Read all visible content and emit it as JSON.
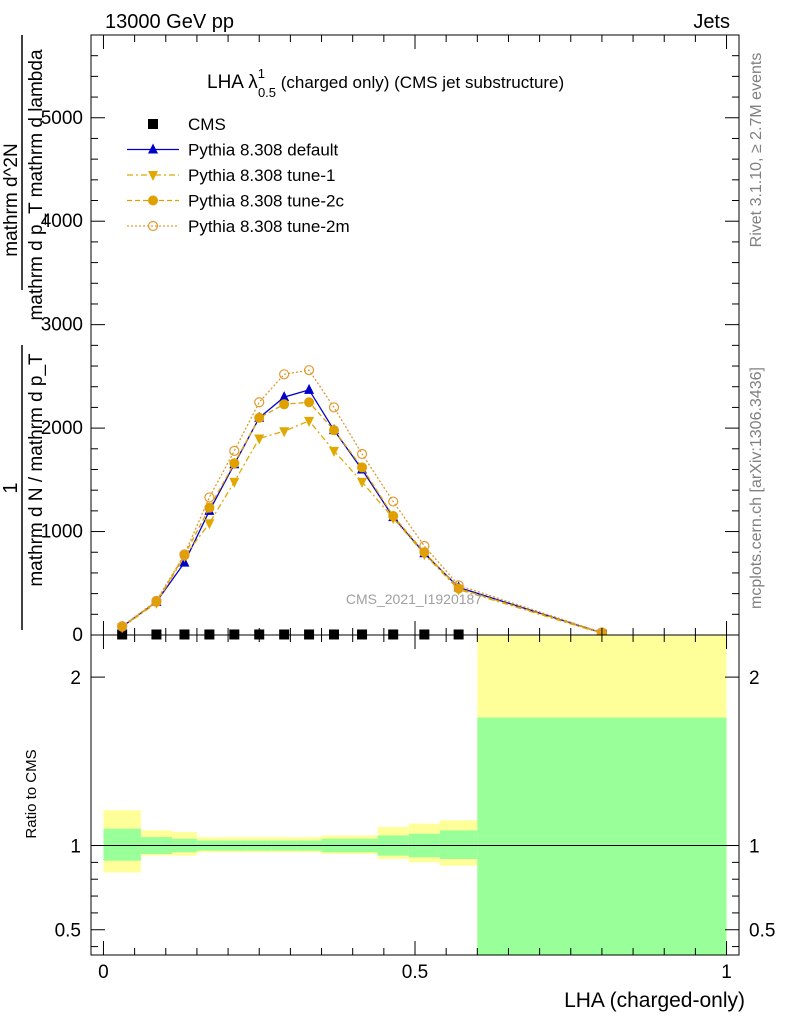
{
  "header": {
    "left": "13000 GeV pp",
    "right": "Jets"
  },
  "side_labels": {
    "rivet": "Rivet 3.1.10, ≥ 2.7M events",
    "mcplots": "mcplots.cern.ch [arXiv:1306.3436]"
  },
  "watermark": "CMS_2021_I1920187",
  "chart_data": [
    {
      "type": "line",
      "title": {
        "prefix": "LHA λ",
        "sup": "1",
        "sub": "0.5",
        "suffix": " (charged only) (CMS jet substructure)"
      },
      "ylabel": {
        "numerator_top": "1",
        "denominator_top": "mathrm d N / mathrm d p_T",
        "numerator_main": "mathrm d^2N",
        "denominator_main": "mathrm d p_T mathrm d lambda"
      },
      "xlim": [
        -0.02,
        1.02
      ],
      "ylim": [
        0,
        5800
      ],
      "yticks": [
        0,
        1000,
        2000,
        3000,
        4000,
        5000
      ],
      "yticklabels": [
        "0",
        "1000",
        "2000",
        "3000",
        "4000",
        "5000"
      ],
      "legend": {
        "placement": "top-left",
        "entries": [
          "CMS",
          "Pythia 8.308 default",
          "Pythia 8.308 tune-1",
          "Pythia 8.308 tune-2c",
          "Pythia 8.308 tune-2m"
        ]
      },
      "x": [
        0.03,
        0.085,
        0.13,
        0.17,
        0.21,
        0.25,
        0.29,
        0.33,
        0.37,
        0.415,
        0.465,
        0.515,
        0.57,
        0.8
      ],
      "series": [
        {
          "name": "CMS",
          "color": "#000000",
          "marker": "square",
          "values": [
            5,
            5,
            5,
            5,
            5,
            5,
            5,
            5,
            5,
            5,
            5,
            5,
            5,
            5
          ]
        },
        {
          "name": "Pythia 8.308 default",
          "color": "#0000cc",
          "marker": "triangle-up",
          "dash": "",
          "values": [
            80,
            320,
            700,
            1200,
            1650,
            2100,
            2300,
            2370,
            1980,
            1600,
            1140,
            790,
            460,
            20
          ]
        },
        {
          "name": "Pythia 8.308 tune-1",
          "color": "#e0a800",
          "marker": "triangle-down",
          "dash": "6,3,2,3",
          "values": [
            75,
            310,
            760,
            1080,
            1480,
            1900,
            1970,
            2070,
            1780,
            1480,
            1130,
            780,
            440,
            15
          ]
        },
        {
          "name": "Pythia 8.308 tune-2c",
          "color": "#e0a000",
          "marker": "circle-filled",
          "dash": "5,3",
          "values": [
            80,
            320,
            770,
            1230,
            1660,
            2100,
            2230,
            2250,
            1980,
            1620,
            1150,
            800,
            450,
            20
          ]
        },
        {
          "name": "Pythia 8.308 tune-2m",
          "color": "#e09a30",
          "marker": "circle-open",
          "dash": "2,2",
          "values": [
            85,
            330,
            780,
            1330,
            1780,
            2250,
            2520,
            2560,
            2200,
            1750,
            1290,
            860,
            480,
            25
          ]
        }
      ]
    },
    {
      "type": "area",
      "ylabel": "Ratio to CMS",
      "xlabel": "LHA (charged-only)",
      "xlim": [
        -0.02,
        1.02
      ],
      "ylim": [
        0.35,
        2.25
      ],
      "yticks": [
        0.5,
        1,
        2
      ],
      "yticklabels": [
        "0.5",
        "1",
        "2"
      ],
      "xticks": [
        0,
        0.5,
        1
      ],
      "xticklabels": [
        "0",
        "0.5",
        "1"
      ],
      "bands": {
        "edges": [
          0.0,
          0.06,
          0.11,
          0.15,
          0.19,
          0.23,
          0.27,
          0.31,
          0.35,
          0.39,
          0.44,
          0.49,
          0.54,
          0.6,
          1.0
        ],
        "inner_color": "#99ff99",
        "outer_color": "#ffff99",
        "inner": [
          [
            0.91,
            1.1
          ],
          [
            0.95,
            1.05
          ],
          [
            0.96,
            1.04
          ],
          [
            0.97,
            1.03
          ],
          [
            0.97,
            1.03
          ],
          [
            0.97,
            1.03
          ],
          [
            0.97,
            1.03
          ],
          [
            0.97,
            1.03
          ],
          [
            0.96,
            1.04
          ],
          [
            0.96,
            1.04
          ],
          [
            0.94,
            1.06
          ],
          [
            0.93,
            1.07
          ],
          [
            0.92,
            1.09
          ],
          [
            0.35,
            1.76
          ]
        ],
        "outer": [
          [
            0.84,
            1.21
          ],
          [
            0.94,
            1.09
          ],
          [
            0.94,
            1.08
          ],
          [
            0.96,
            1.05
          ],
          [
            0.96,
            1.05
          ],
          [
            0.96,
            1.05
          ],
          [
            0.96,
            1.05
          ],
          [
            0.96,
            1.05
          ],
          [
            0.95,
            1.06
          ],
          [
            0.95,
            1.06
          ],
          [
            0.92,
            1.11
          ],
          [
            0.9,
            1.13
          ],
          [
            0.88,
            1.15
          ],
          [
            0.35,
            2.25
          ]
        ]
      },
      "reference": 1
    }
  ]
}
